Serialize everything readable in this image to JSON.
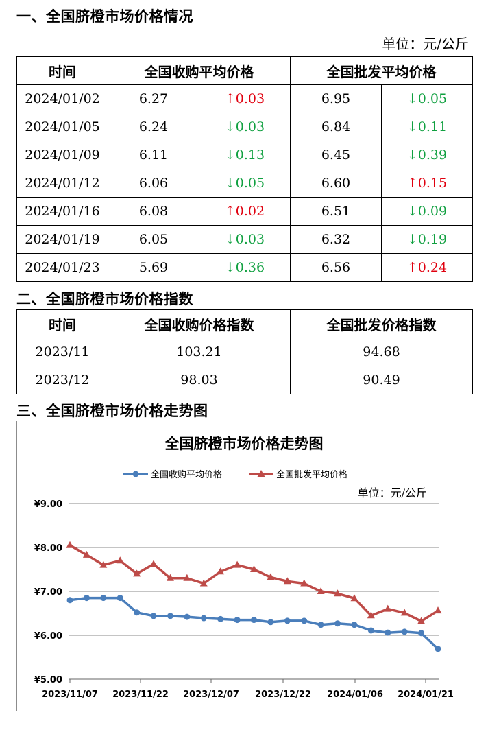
{
  "section1": {
    "title": "一、全国脐橙市场价格情况",
    "unit": "单位：元/公斤"
  },
  "table1": {
    "headers": [
      "时间",
      "全国收购平均价格",
      "全国批发平均价格"
    ],
    "rows": [
      {
        "date": "2024/01/02",
        "buy": "6.27",
        "buy_chg": "0.03",
        "buy_dir": "up",
        "buy_arrow": "↑",
        "whole": "6.95",
        "whole_chg": "0.05",
        "whole_dir": "down",
        "whole_arrow": "↓"
      },
      {
        "date": "2024/01/05",
        "buy": "6.24",
        "buy_chg": "0.03",
        "buy_dir": "down",
        "buy_arrow": "↓",
        "whole": "6.84",
        "whole_chg": "0.11",
        "whole_dir": "down",
        "whole_arrow": "↓"
      },
      {
        "date": "2024/01/09",
        "buy": "6.11",
        "buy_chg": "0.13",
        "buy_dir": "down",
        "buy_arrow": "↓",
        "whole": "6.45",
        "whole_chg": "0.39",
        "whole_dir": "down",
        "whole_arrow": "↓"
      },
      {
        "date": "2024/01/12",
        "buy": "6.06",
        "buy_chg": "0.05",
        "buy_dir": "down",
        "buy_arrow": "↓",
        "whole": "6.60",
        "whole_chg": "0.15",
        "whole_dir": "up",
        "whole_arrow": "↑"
      },
      {
        "date": "2024/01/16",
        "buy": "6.08",
        "buy_chg": "0.02",
        "buy_dir": "up",
        "buy_arrow": "↑",
        "whole": "6.51",
        "whole_chg": "0.09",
        "whole_dir": "down",
        "whole_arrow": "↓"
      },
      {
        "date": "2024/01/19",
        "buy": "6.05",
        "buy_chg": "0.03",
        "buy_dir": "down",
        "buy_arrow": "↓",
        "whole": "6.32",
        "whole_chg": "0.19",
        "whole_dir": "down",
        "whole_arrow": "↓"
      },
      {
        "date": "2024/01/23",
        "buy": "5.69",
        "buy_chg": "0.36",
        "buy_dir": "down",
        "buy_arrow": "↓",
        "whole": "6.56",
        "whole_chg": "0.24",
        "whole_dir": "up",
        "whole_arrow": "↑"
      }
    ]
  },
  "section2": {
    "title": "二、全国脐橙市场价格指数"
  },
  "table2": {
    "headers": [
      "时间",
      "全国收购价格指数",
      "全国批发价格指数"
    ],
    "rows": [
      {
        "date": "2023/11",
        "buy": "103.21",
        "whole": "94.68"
      },
      {
        "date": "2023/12",
        "buy": "98.03",
        "whole": "90.49"
      }
    ]
  },
  "section3": {
    "title": "三、全国脐橙市场价格走势图"
  },
  "colors": {
    "up": "#e0000f",
    "down": "#10a040",
    "buy_series": "#4a7ebb",
    "whole_series": "#be4b48"
  },
  "chart_data": {
    "type": "line",
    "title": "全国脐橙市场价格走势图",
    "unit": "单位：元/公斤",
    "yticks": [
      "¥5.00",
      "¥6.00",
      "¥7.00",
      "¥8.00",
      "¥9.00"
    ],
    "ylim": [
      5,
      9
    ],
    "xticks": [
      "2023/11/07",
      "2023/11/22",
      "2023/12/07",
      "2023/12/22",
      "2024/01/06",
      "2024/01/21"
    ],
    "x": [
      "2023/11/07",
      "2023/11/10",
      "2023/11/14",
      "2023/11/17",
      "2023/11/21",
      "2023/11/24",
      "2023/11/28",
      "2023/12/01",
      "2023/12/05",
      "2023/12/08",
      "2023/12/12",
      "2023/12/15",
      "2023/12/19",
      "2023/12/22",
      "2023/12/26",
      "2023/12/29",
      "2024/01/02",
      "2024/01/05",
      "2024/01/09",
      "2024/01/12",
      "2024/01/16",
      "2024/01/19",
      "2024/01/23"
    ],
    "legend_position": "top",
    "grid": true,
    "series": [
      {
        "name": "全国收购平均价格",
        "marker": "circle",
        "values": [
          6.8,
          6.85,
          6.85,
          6.85,
          6.52,
          6.44,
          6.44,
          6.42,
          6.39,
          6.37,
          6.35,
          6.35,
          6.3,
          6.33,
          6.33,
          6.24,
          6.27,
          6.24,
          6.11,
          6.06,
          6.08,
          6.05,
          5.69
        ]
      },
      {
        "name": "全国批发平均价格",
        "marker": "triangle",
        "values": [
          8.05,
          7.83,
          7.6,
          7.7,
          7.4,
          7.62,
          7.3,
          7.3,
          7.18,
          7.45,
          7.6,
          7.5,
          7.32,
          7.23,
          7.18,
          7.0,
          6.95,
          6.84,
          6.45,
          6.6,
          6.51,
          6.32,
          6.56
        ]
      }
    ]
  }
}
